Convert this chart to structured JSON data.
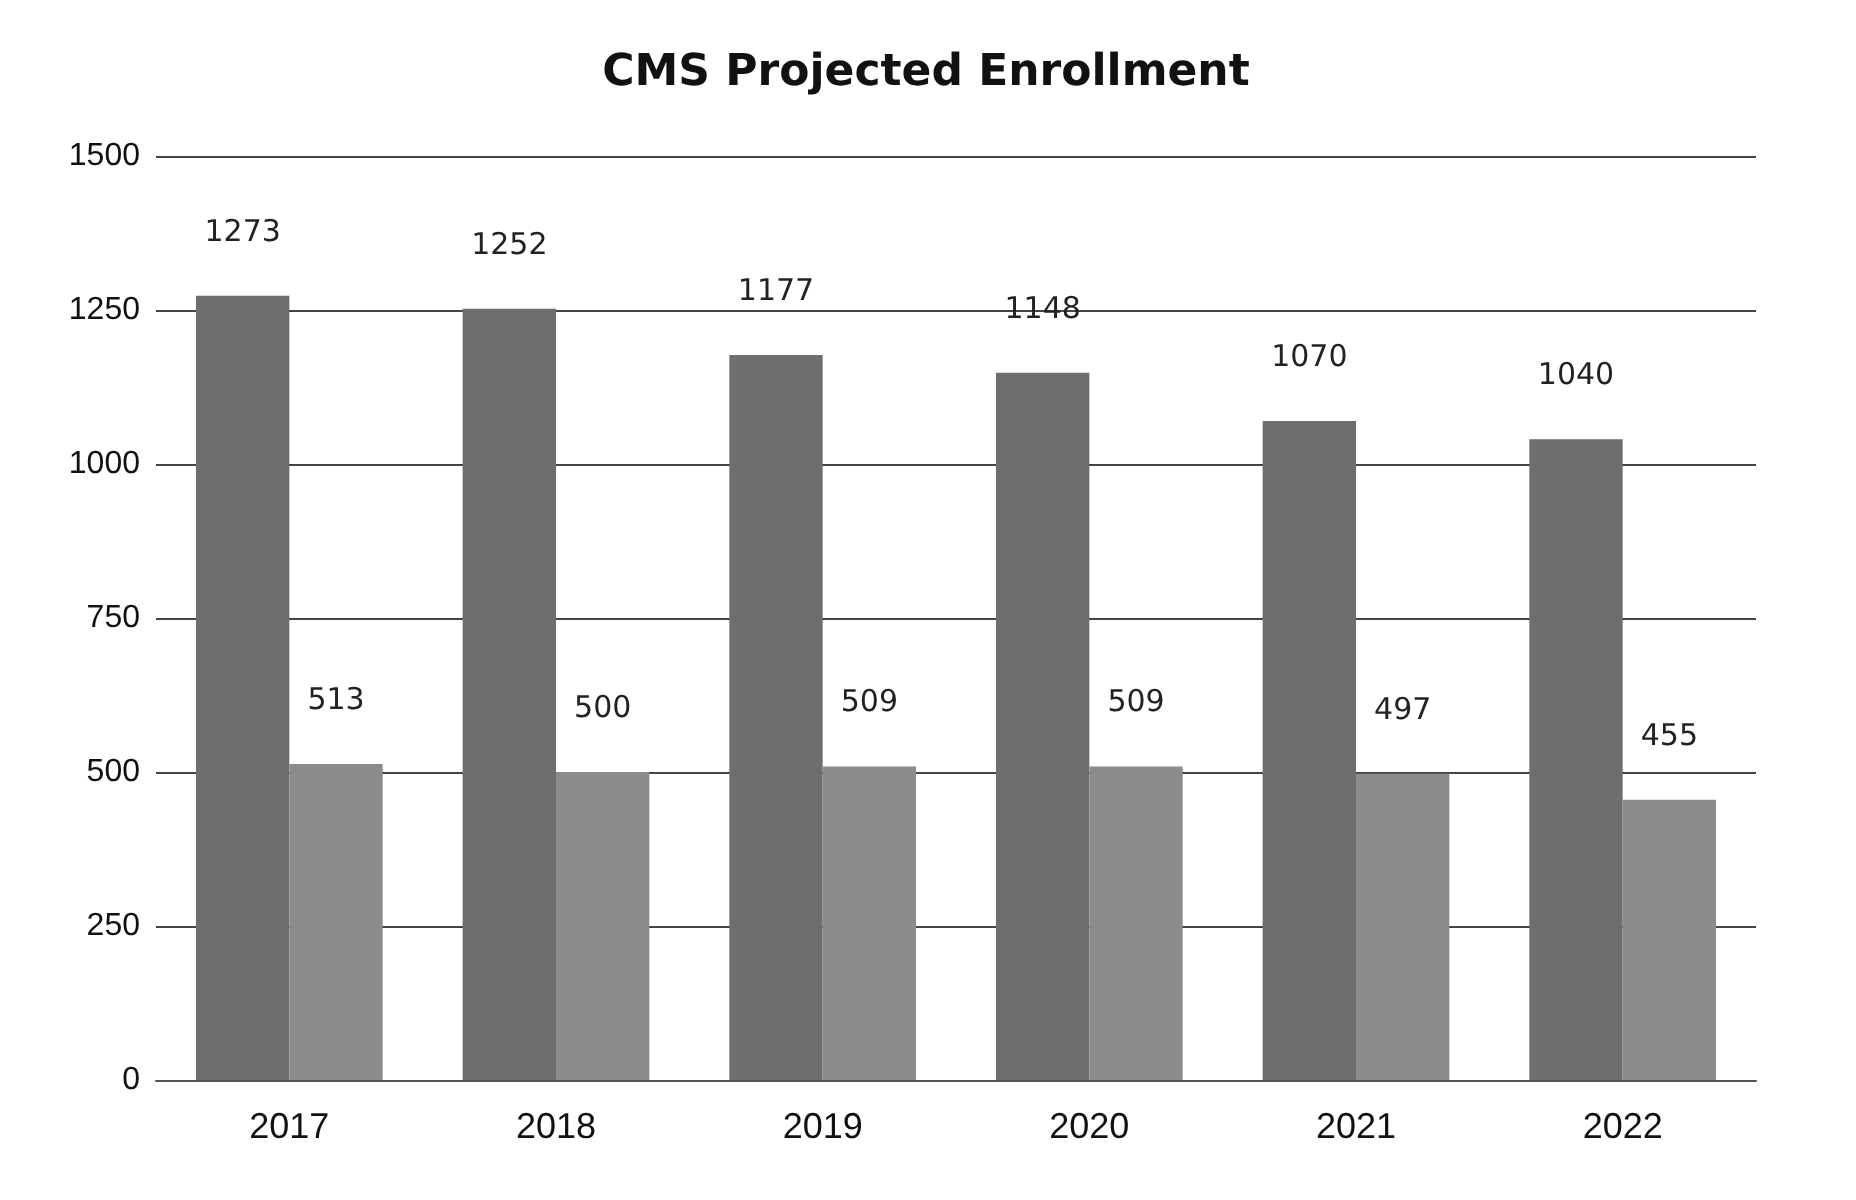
{
  "chart_data": {
    "type": "bar",
    "title": "CMS Projected Enrollment",
    "categories": [
      "2017",
      "2018",
      "2019",
      "2020",
      "2021",
      "2022"
    ],
    "series": [
      {
        "color": "#6e6e6e",
        "values": [
          1273,
          1252,
          1177,
          1148,
          1070,
          1040
        ]
      },
      {
        "color": "#8c8c8c",
        "values": [
          513,
          500,
          509,
          509,
          497,
          455
        ]
      }
    ],
    "ylim": [
      0,
      1500
    ],
    "yticks": [
      0,
      250,
      500,
      750,
      1000,
      1250,
      1500
    ],
    "grid": "y",
    "data_labels": true
  }
}
